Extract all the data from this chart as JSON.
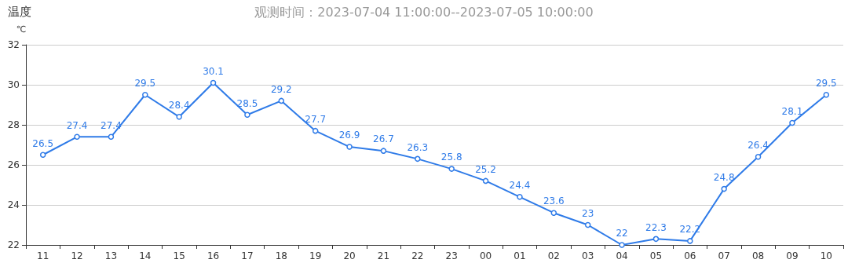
{
  "chart_data": {
    "type": "line",
    "title": "温度",
    "subtitle": "观测时间：2023-07-04 11:00:00--2023-07-05 10:00:00",
    "ylabel": "℃",
    "categories": [
      "11",
      "12",
      "13",
      "14",
      "15",
      "16",
      "17",
      "18",
      "19",
      "20",
      "21",
      "22",
      "23",
      "00",
      "01",
      "02",
      "03",
      "04",
      "05",
      "06",
      "07",
      "08",
      "09",
      "10"
    ],
    "series": [
      {
        "color": "#2f7be8",
        "values": [
          26.5,
          27.4,
          27.4,
          29.5,
          28.4,
          30.1,
          28.5,
          29.2,
          27.7,
          26.9,
          26.7,
          26.3,
          25.8,
          25.2,
          24.4,
          23.6,
          23,
          22,
          22.3,
          22.2,
          24.8,
          26.4,
          28.1,
          29.5
        ]
      }
    ],
    "ylim": [
      22,
      32
    ],
    "yticks": [
      22,
      24,
      26,
      28,
      30,
      32
    ],
    "grid": "y",
    "marker": "circle",
    "line_style": "solid",
    "data_labels": true
  }
}
